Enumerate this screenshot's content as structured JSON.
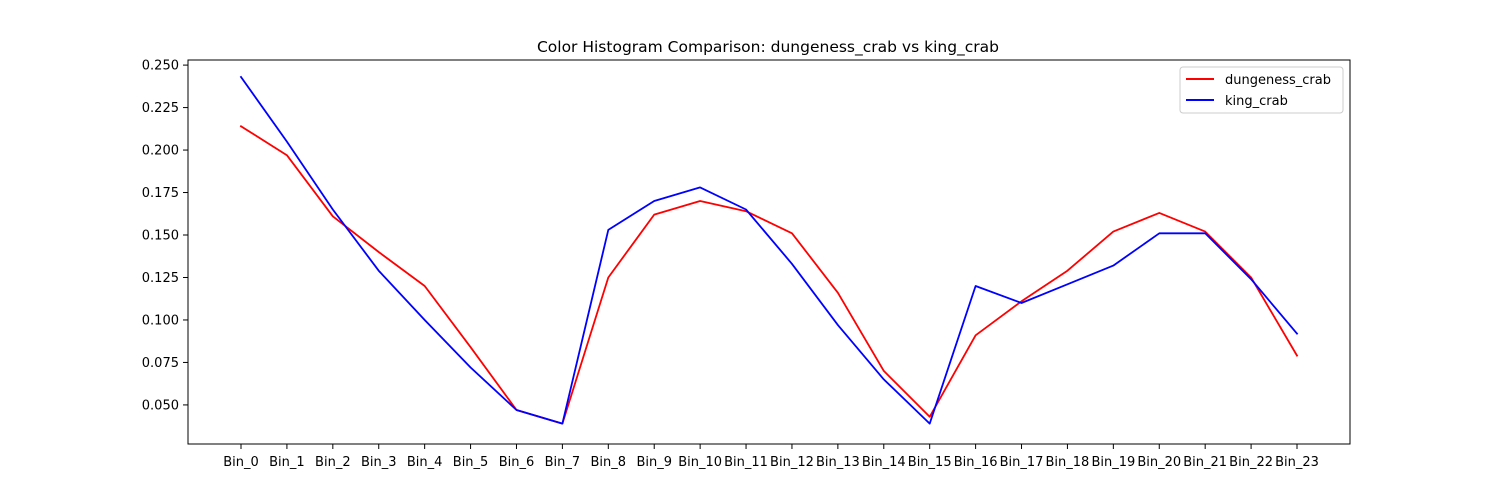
{
  "chart_data": {
    "type": "line",
    "title": "Color Histogram Comparison: dungeness_crab vs king_crab",
    "xlabel": "",
    "ylabel": "",
    "categories": [
      "Bin_0",
      "Bin_1",
      "Bin_2",
      "Bin_3",
      "Bin_4",
      "Bin_5",
      "Bin_6",
      "Bin_7",
      "Bin_8",
      "Bin_9",
      "Bin_10",
      "Bin_11",
      "Bin_12",
      "Bin_13",
      "Bin_14",
      "Bin_15",
      "Bin_16",
      "Bin_17",
      "Bin_18",
      "Bin_19",
      "Bin_20",
      "Bin_21",
      "Bin_22",
      "Bin_23"
    ],
    "ylim": [
      0.027,
      0.253
    ],
    "yticks": [
      0.05,
      0.075,
      0.1,
      0.125,
      0.15,
      0.175,
      0.2,
      0.225,
      0.25
    ],
    "ytick_labels": [
      "0.050",
      "0.075",
      "0.100",
      "0.125",
      "0.150",
      "0.175",
      "0.200",
      "0.225",
      "0.250"
    ],
    "grid": false,
    "legend_position": "top-right",
    "series": [
      {
        "name": "dungeness_crab",
        "color": "#ff0000",
        "values": [
          0.214,
          0.197,
          0.161,
          0.14,
          0.12,
          0.084,
          0.047,
          0.039,
          0.125,
          0.162,
          0.17,
          0.164,
          0.151,
          0.116,
          0.07,
          0.043,
          0.091,
          0.111,
          0.129,
          0.152,
          0.163,
          0.152,
          0.125,
          0.079
        ]
      },
      {
        "name": "king_crab",
        "color": "#0000ff",
        "values": [
          0.243,
          0.205,
          0.165,
          0.129,
          0.1,
          0.072,
          0.047,
          0.039,
          0.153,
          0.17,
          0.178,
          0.165,
          0.133,
          0.097,
          0.065,
          0.039,
          0.12,
          0.11,
          0.121,
          0.132,
          0.151,
          0.151,
          0.124,
          0.092
        ]
      }
    ]
  }
}
